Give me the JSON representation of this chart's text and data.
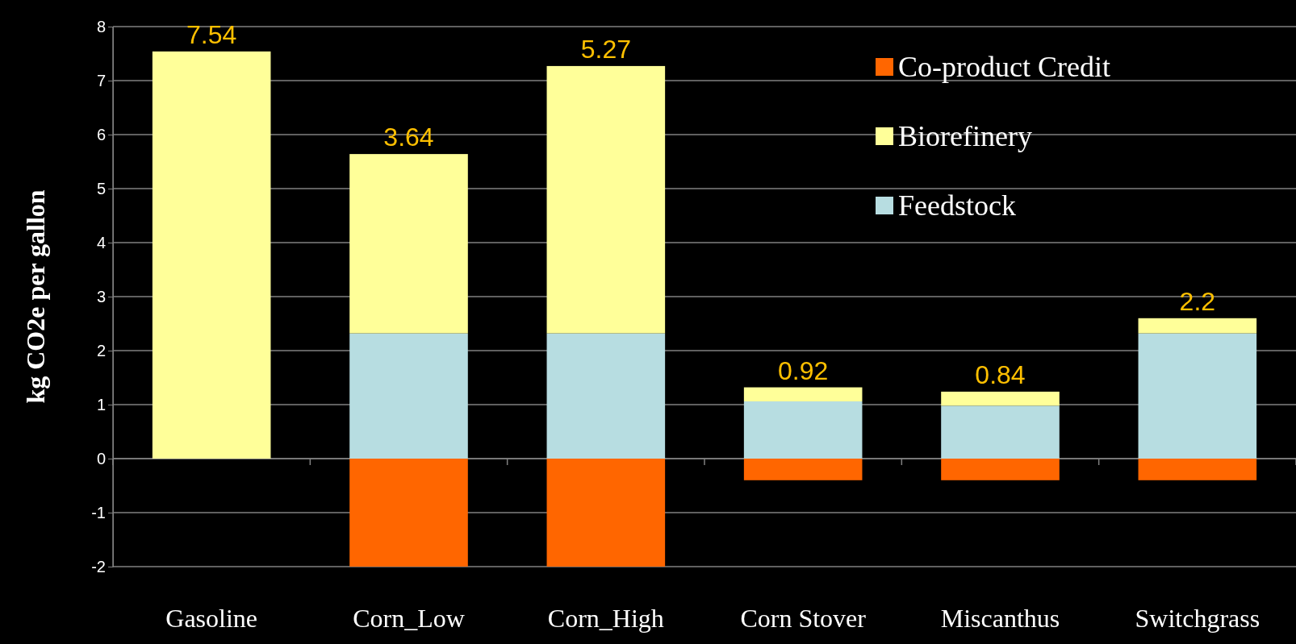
{
  "chart_data": {
    "type": "bar",
    "stacked": true,
    "ylabel": "kg CO2e per gallon",
    "categories": [
      "Gasoline",
      "Corn_Low",
      "Corn_High",
      "Corn Stover",
      "Miscanthus",
      "Switchgrass"
    ],
    "series": [
      {
        "name": "Feedstock",
        "color": "#b7dde1",
        "values": [
          null,
          2.32,
          2.32,
          1.06,
          0.98,
          2.32
        ]
      },
      {
        "name": "Biorefinery",
        "color": "#ffff99",
        "values": [
          7.54,
          3.32,
          4.95,
          0.26,
          0.26,
          0.28
        ]
      },
      {
        "name": "Co-product Credit",
        "color": "#ff6600",
        "values": [
          null,
          -2.0,
          -2.0,
          -0.4,
          -0.4,
          -0.4
        ]
      }
    ],
    "totals": [
      "7.54",
      "3.64",
      "5.27",
      "0.92",
      "0.84",
      "2.2"
    ],
    "ylim": [
      -2,
      8
    ],
    "yticks": [
      -2,
      -1,
      0,
      1,
      2,
      3,
      4,
      5,
      6,
      7,
      8
    ],
    "grid": "y",
    "legend": "top right"
  }
}
